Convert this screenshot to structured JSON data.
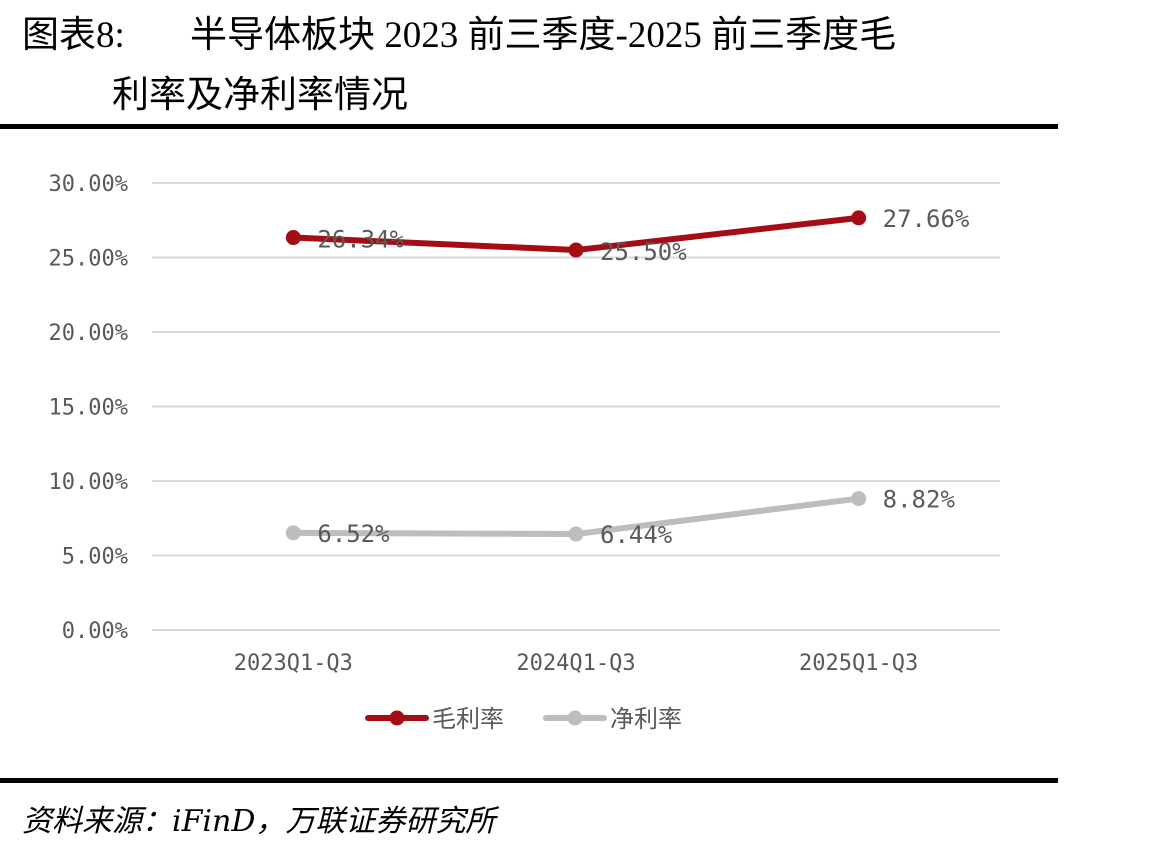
{
  "header": {
    "figure_label": "图表8:",
    "title_line1": "半导体板块 2023 前三季度-2025 前三季度毛",
    "title_line2": "利率及净利率情况"
  },
  "footer": {
    "source": "资料来源：iFinD，万联证券研究所"
  },
  "chart_data": {
    "type": "line",
    "categories": [
      "2023Q1-Q3",
      "2024Q1-Q3",
      "2025Q1-Q3"
    ],
    "series": [
      {
        "name": "毛利率",
        "values": [
          26.34,
          25.5,
          27.66
        ],
        "labels": [
          "26.34%",
          "25.50%",
          "27.66%"
        ],
        "color": "#A50D14"
      },
      {
        "name": "净利率",
        "values": [
          6.52,
          6.44,
          8.82
        ],
        "labels": [
          "6.52%",
          "6.44%",
          "8.82%"
        ],
        "color": "#BDBDBD"
      }
    ],
    "ylim": [
      0,
      30
    ],
    "yticks": [
      "0.00%",
      "5.00%",
      "10.00%",
      "15.00%",
      "20.00%",
      "25.00%",
      "30.00%"
    ],
    "ytick_values": [
      0,
      5,
      10,
      15,
      20,
      25,
      30
    ],
    "grid": true,
    "legend_position": "bottom"
  }
}
